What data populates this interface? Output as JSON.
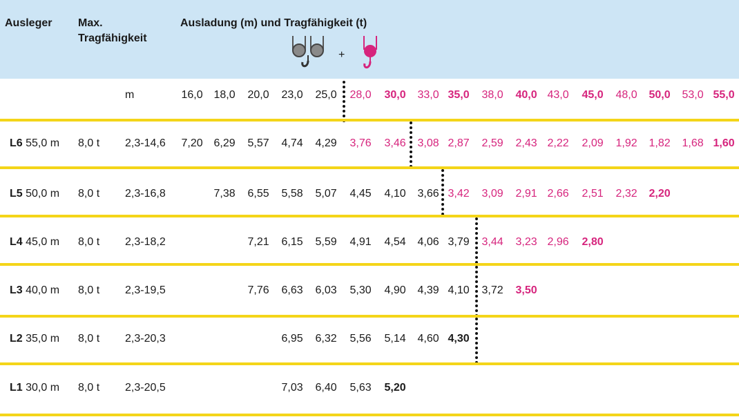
{
  "header": {
    "col_boom": "Ausleger",
    "col_max_1": "Max.",
    "col_max_2": "Tragfähigkeit",
    "col_radius": "Ausladung (m) und Tragfähigkeit (t)",
    "plus": "+",
    "icons": [
      "double-sheave-hook-block-icon",
      "single-hook-icon"
    ]
  },
  "colors": {
    "accent_pink": "#d6247d",
    "divider_yellow": "#f4d519",
    "header_blue": "#cde5f5"
  },
  "unit_row": {
    "unit": "m",
    "radii": [
      {
        "v": "16,0",
        "pink": false,
        "bold": false
      },
      {
        "v": "18,0",
        "pink": false,
        "bold": false
      },
      {
        "v": "20,0",
        "pink": false,
        "bold": false
      },
      {
        "v": "23,0",
        "pink": false,
        "bold": false
      },
      {
        "v": "25,0",
        "pink": false,
        "bold": false
      },
      {
        "v": "28,0",
        "pink": true,
        "bold": false
      },
      {
        "v": "30,0",
        "pink": true,
        "bold": true
      },
      {
        "v": "33,0",
        "pink": true,
        "bold": false
      },
      {
        "v": "35,0",
        "pink": true,
        "bold": true
      },
      {
        "v": "38,0",
        "pink": true,
        "bold": false
      },
      {
        "v": "40,0",
        "pink": true,
        "bold": true
      },
      {
        "v": "43,0",
        "pink": true,
        "bold": false
      },
      {
        "v": "45,0",
        "pink": true,
        "bold": true
      },
      {
        "v": "48,0",
        "pink": true,
        "bold": false
      },
      {
        "v": "50,0",
        "pink": true,
        "bold": true
      },
      {
        "v": "53,0",
        "pink": true,
        "bold": false
      },
      {
        "v": "55,0",
        "pink": true,
        "bold": true
      }
    ]
  },
  "rows": [
    {
      "boom_code": "L6",
      "boom_length": "55,0 m",
      "max_load": "8,0 t",
      "range": "2,3-14,6",
      "start": 0,
      "pink_from": 5,
      "values": [
        {
          "v": "7,20",
          "bold": false
        },
        {
          "v": "6,29",
          "bold": false
        },
        {
          "v": "5,57",
          "bold": false
        },
        {
          "v": "4,74",
          "bold": false
        },
        {
          "v": "4,29",
          "bold": false
        },
        {
          "v": "3,76",
          "bold": false
        },
        {
          "v": "3,46",
          "bold": false
        },
        {
          "v": "3,08",
          "bold": false
        },
        {
          "v": "2,87",
          "bold": false
        },
        {
          "v": "2,59",
          "bold": false
        },
        {
          "v": "2,43",
          "bold": false
        },
        {
          "v": "2,22",
          "bold": false
        },
        {
          "v": "2,09",
          "bold": false
        },
        {
          "v": "1,92",
          "bold": false
        },
        {
          "v": "1,82",
          "bold": false
        },
        {
          "v": "1,68",
          "bold": false
        },
        {
          "v": "1,60",
          "bold": true
        }
      ]
    },
    {
      "boom_code": "L5",
      "boom_length": "50,0 m",
      "max_load": "8,0 t",
      "range": "2,3-16,8",
      "start": 1,
      "pink_from": 8,
      "values": [
        {
          "v": "7,38",
          "bold": false
        },
        {
          "v": "6,55",
          "bold": false
        },
        {
          "v": "5,58",
          "bold": false
        },
        {
          "v": "5,07",
          "bold": false
        },
        {
          "v": "4,45",
          "bold": false
        },
        {
          "v": "4,10",
          "bold": false
        },
        {
          "v": "3,66",
          "bold": false
        },
        {
          "v": "3,42",
          "bold": false
        },
        {
          "v": "3,09",
          "bold": false
        },
        {
          "v": "2,91",
          "bold": false
        },
        {
          "v": "2,66",
          "bold": false
        },
        {
          "v": "2,51",
          "bold": false
        },
        {
          "v": "2,32",
          "bold": false
        },
        {
          "v": "2,20",
          "bold": true
        }
      ]
    },
    {
      "boom_code": "L4",
      "boom_length": "45,0 m",
      "max_load": "8,0 t",
      "range": "2,3-18,2",
      "start": 2,
      "pink_from": 9,
      "values": [
        {
          "v": "7,21",
          "bold": false
        },
        {
          "v": "6,15",
          "bold": false
        },
        {
          "v": "5,59",
          "bold": false
        },
        {
          "v": "4,91",
          "bold": false
        },
        {
          "v": "4,54",
          "bold": false
        },
        {
          "v": "4,06",
          "bold": false
        },
        {
          "v": "3,79",
          "bold": false
        },
        {
          "v": "3,44",
          "bold": false
        },
        {
          "v": "3,23",
          "bold": false
        },
        {
          "v": "2,96",
          "bold": false
        },
        {
          "v": "2,80",
          "bold": true
        }
      ]
    },
    {
      "boom_code": "L3",
      "boom_length": "40,0 m",
      "max_load": "8,0 t",
      "range": "2,3-19,5",
      "start": 2,
      "pink_from": 10,
      "values": [
        {
          "v": "7,76",
          "bold": false
        },
        {
          "v": "6,63",
          "bold": false
        },
        {
          "v": "6,03",
          "bold": false
        },
        {
          "v": "5,30",
          "bold": false
        },
        {
          "v": "4,90",
          "bold": false
        },
        {
          "v": "4,39",
          "bold": false
        },
        {
          "v": "4,10",
          "bold": false
        },
        {
          "v": "3,72",
          "bold": false
        },
        {
          "v": "3,50",
          "bold": true
        }
      ]
    },
    {
      "boom_code": "L2",
      "boom_length": "35,0 m",
      "max_load": "8,0 t",
      "range": "2,3-20,3",
      "start": 3,
      "pink_from": 99,
      "values": [
        {
          "v": "6,95",
          "bold": false
        },
        {
          "v": "6,32",
          "bold": false
        },
        {
          "v": "5,56",
          "bold": false
        },
        {
          "v": "5,14",
          "bold": false
        },
        {
          "v": "4,60",
          "bold": false
        },
        {
          "v": "4,30",
          "bold": true
        }
      ]
    },
    {
      "boom_code": "L1",
      "boom_length": "30,0 m",
      "max_load": "8,0 t",
      "range": "2,3-20,5",
      "start": 3,
      "pink_from": 99,
      "values": [
        {
          "v": "7,03",
          "bold": false
        },
        {
          "v": "6,40",
          "bold": false
        },
        {
          "v": "5,63",
          "bold": false
        },
        {
          "v": "5,20",
          "bold": true
        }
      ]
    }
  ]
}
